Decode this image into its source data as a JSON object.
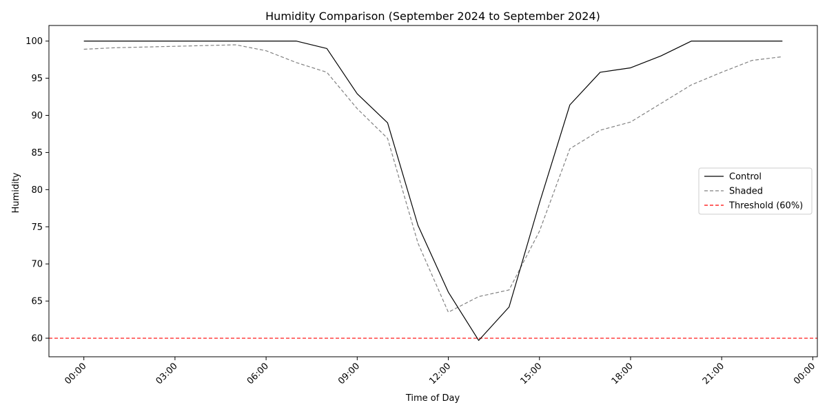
{
  "chart_data": {
    "type": "line",
    "title": "Humidity Comparison (September 2024 to September 2024)",
    "xlabel": "Time of Day",
    "ylabel": "Humidity",
    "x": [
      0,
      1,
      2,
      3,
      4,
      5,
      6,
      7,
      8,
      9,
      10,
      11,
      12,
      13,
      14,
      15,
      16,
      17,
      18,
      19,
      20,
      21,
      22,
      23
    ],
    "xlim": [
      -1.15,
      24.15
    ],
    "ylim": [
      57.5,
      102.1
    ],
    "xticks": [
      0,
      3,
      6,
      9,
      12,
      15,
      18,
      21,
      24
    ],
    "xtick_labels": [
      "00:00",
      "03:00",
      "06:00",
      "09:00",
      "12:00",
      "15:00",
      "18:00",
      "21:00",
      "00:00"
    ],
    "yticks": [
      60,
      65,
      70,
      75,
      80,
      85,
      90,
      95,
      100
    ],
    "ytick_labels": [
      "60",
      "65",
      "70",
      "75",
      "80",
      "85",
      "90",
      "95",
      "100"
    ],
    "grid": false,
    "legend_position": "center-right",
    "series": [
      {
        "name": "Control",
        "color": "#000000",
        "dash": "solid",
        "values": [
          100.0,
          100.0,
          100.0,
          100.0,
          100.0,
          100.0,
          100.0,
          100.0,
          99.0,
          92.9,
          89.0,
          75.2,
          66.2,
          59.7,
          64.2,
          78.2,
          91.4,
          95.8,
          96.4,
          98.0,
          100.0,
          100.0,
          100.0,
          100.0
        ]
      },
      {
        "name": "Shaded",
        "color": "#808080",
        "dash": "dashed",
        "values": [
          98.9,
          99.1,
          99.2,
          99.3,
          99.4,
          99.5,
          98.7,
          97.1,
          95.8,
          90.9,
          86.9,
          72.8,
          63.5,
          65.6,
          66.5,
          74.4,
          85.5,
          88.0,
          89.1,
          91.6,
          94.1,
          95.8,
          97.4,
          97.9
        ]
      }
    ],
    "reference_lines": [
      {
        "name": "Threshold (60%)",
        "y": 60,
        "color": "#ff0000",
        "dash": "dashed"
      }
    ]
  }
}
